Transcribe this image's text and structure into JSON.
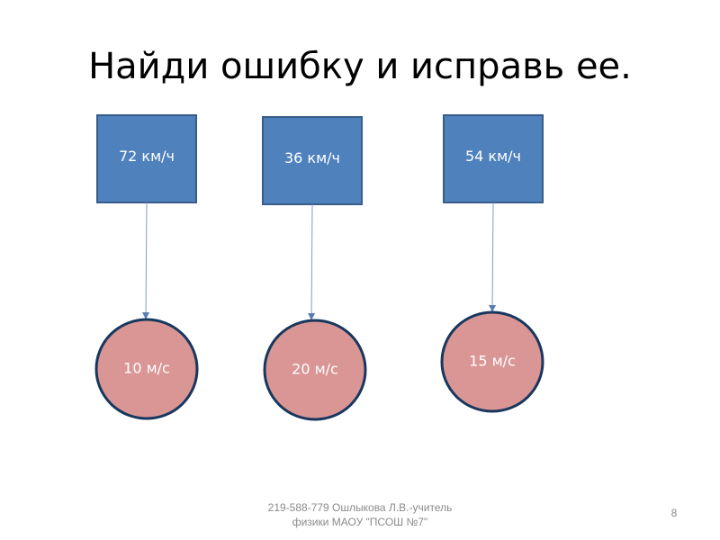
{
  "title": "Найди ошибку и исправь ее.",
  "pairs": [
    {
      "box": "72 км/ч",
      "circle": "10 м/с"
    },
    {
      "box": "36 км/ч",
      "circle": "20 м/с"
    },
    {
      "box": "54 км/ч",
      "circle": "15 м/с"
    }
  ],
  "footer": {
    "lines": [
      "219-588-779 Ошлыкова Л.В.-учитель",
      "физики МАОУ \"ПСОШ №7\""
    ],
    "page": "8"
  }
}
